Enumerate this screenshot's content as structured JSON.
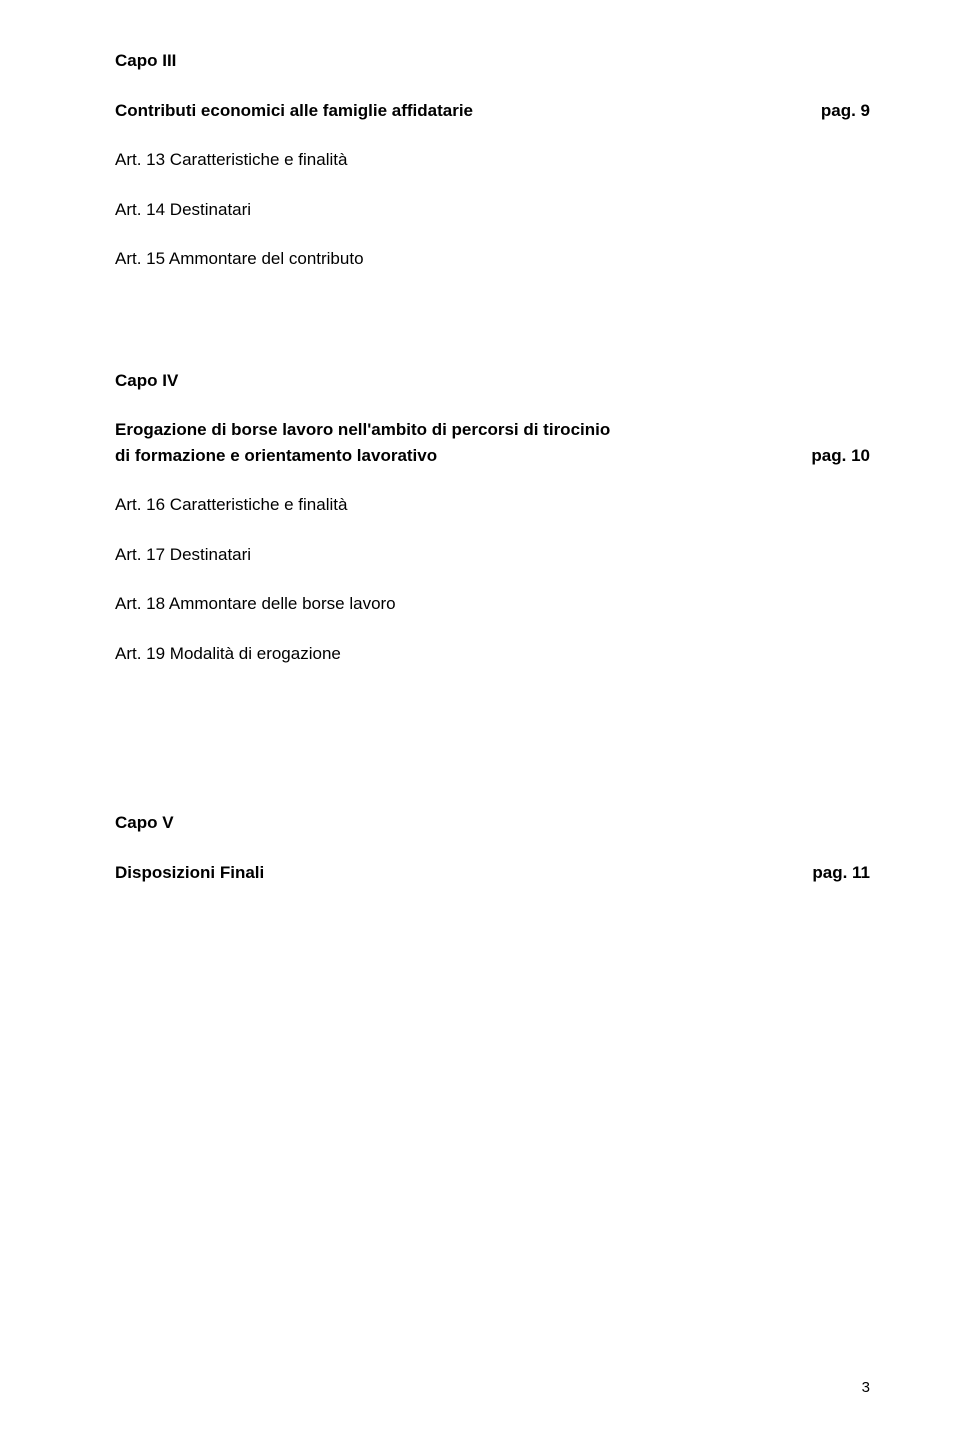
{
  "capo3": {
    "heading": "Capo III",
    "title": "Contributi economici alle famiglie affidatarie",
    "page_ref": "pag. 9",
    "articles": [
      "Art. 13 Caratteristiche e finalità",
      "Art. 14 Destinatari",
      "Art. 15 Ammontare del contributo"
    ]
  },
  "capo4": {
    "heading": "Capo IV",
    "title_line1": "Erogazione di borse lavoro nell'ambito di percorsi di tirocinio",
    "title_line2": "di formazione e orientamento lavorativo",
    "page_ref": "pag. 10",
    "articles": [
      "Art. 16 Caratteristiche e finalità",
      "Art. 17 Destinatari",
      "Art. 18 Ammontare delle borse lavoro",
      "Art. 19 Modalità di erogazione"
    ]
  },
  "capo5": {
    "heading": "Capo V",
    "title": "Disposizioni Finali",
    "page_ref": "pag. 11"
  },
  "page_number": "3"
}
